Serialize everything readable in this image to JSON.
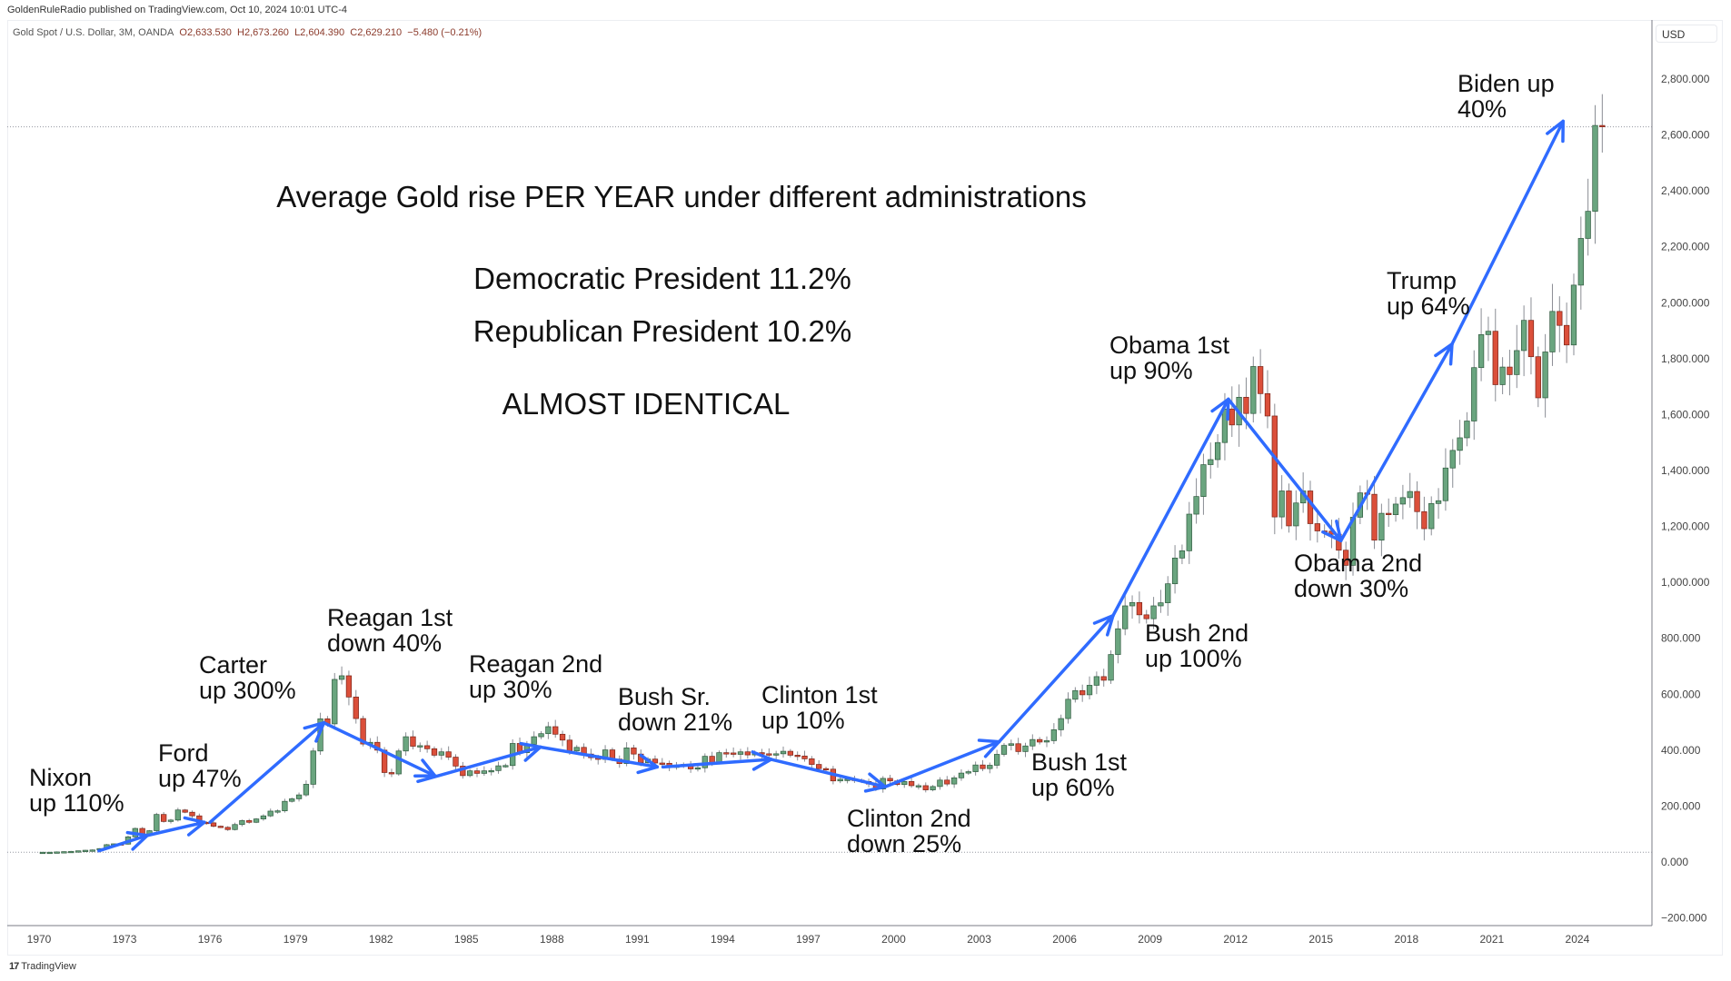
{
  "header": {
    "published": "GoldenRuleRadio published on TradingView.com, Oct 10, 2024 10:01 UTC-4",
    "symbol": "Gold Spot / U.S. Dollar, 3M, OANDA",
    "open": "O2,633.530",
    "high": "H2,673.260",
    "low": "L2,604.390",
    "close": "C2,629.210",
    "change": "−5.480 (−0.21%)"
  },
  "currency": "USD",
  "footer": {
    "brand": "TradingView"
  },
  "headline": {
    "title": "Average Gold rise PER YEAR under different administrations",
    "democratic": "Democratic President 11.2%",
    "republican": "Republican President 10.2%",
    "verdict": "ALMOST IDENTICAL"
  },
  "annotations": [
    {
      "id": "nixon",
      "text": "Nixon\nup 110%"
    },
    {
      "id": "ford",
      "text": "Ford\nup 47%"
    },
    {
      "id": "carter",
      "text": "Carter\nup 300%"
    },
    {
      "id": "reagan1",
      "text": "Reagan 1st\ndown 40%"
    },
    {
      "id": "reagan2",
      "text": "Reagan 2nd\nup 30%"
    },
    {
      "id": "bushsr",
      "text": "Bush Sr.\ndown 21%"
    },
    {
      "id": "clinton1",
      "text": "Clinton 1st\nup 10%"
    },
    {
      "id": "clinton2",
      "text": "Clinton 2nd\ndown 25%"
    },
    {
      "id": "bush1",
      "text": "Bush 1st\nup 60%"
    },
    {
      "id": "bush2",
      "text": "Bush 2nd\nup 100%"
    },
    {
      "id": "obama1",
      "text": "Obama 1st\nup 90%"
    },
    {
      "id": "obama2",
      "text": "Obama 2nd\ndown 30%"
    },
    {
      "id": "trump",
      "text": "Trump\nup 64%"
    },
    {
      "id": "biden",
      "text": "Biden up\n40%"
    }
  ],
  "chart_data": {
    "type": "candlestick",
    "interval": "3M",
    "start": "1970 Q1",
    "ylim": [
      -200,
      2800
    ],
    "y_ticks": [
      "2,800.000",
      "2,600.000",
      "2,400.000",
      "2,200.000",
      "2,000.000",
      "1,800.000",
      "1,600.000",
      "1,400.000",
      "1,200.000",
      "1,000.000",
      "800.000",
      "600.000",
      "400.000",
      "200.000",
      "0.000",
      "−200.000"
    ],
    "y_tick_values": [
      2800,
      2600,
      2400,
      2200,
      2000,
      1800,
      1600,
      1400,
      1200,
      1000,
      800,
      600,
      400,
      200,
      0,
      -200
    ],
    "x_ticks": [
      "1970",
      "1973",
      "1976",
      "1979",
      "1982",
      "1985",
      "1988",
      "1991",
      "1994",
      "1997",
      "2000",
      "2003",
      "2006",
      "2009",
      "2012",
      "2015",
      "2018",
      "2021",
      "2024"
    ],
    "grid": false,
    "colors": {
      "up": "#6aa57f",
      "down": "#db4f3a",
      "up_border": "#2f5a3e",
      "down_border": "#7a2418",
      "arrow": "#2f6bff"
    },
    "quarterly_close": [
      35,
      35,
      36,
      37,
      38,
      40,
      42,
      43,
      48,
      62,
      65,
      64,
      90,
      120,
      100,
      112,
      170,
      145,
      150,
      186,
      178,
      165,
      142,
      140,
      128,
      124,
      116,
      134,
      148,
      142,
      154,
      165,
      182,
      183,
      217,
      226,
      240,
      278,
      397,
      512,
      494,
      653,
      666,
      590,
      513,
      422,
      428,
      400,
      320,
      315,
      397,
      448,
      414,
      416,
      405,
      382,
      394,
      375,
      343,
      309,
      326,
      317,
      326,
      327,
      344,
      345,
      424,
      391,
      421,
      448,
      459,
      484,
      457,
      436,
      397,
      410,
      386,
      373,
      367,
      401,
      368,
      352,
      408,
      386,
      355,
      368,
      354,
      353,
      342,
      343,
      349,
      333,
      337,
      378,
      356,
      391,
      390,
      385,
      394,
      383,
      391,
      387,
      384,
      387,
      396,
      382,
      379,
      369,
      349,
      334,
      332,
      290,
      296,
      296,
      293,
      288,
      279,
      261,
      299,
      290,
      277,
      288,
      273,
      273,
      258,
      270,
      293,
      279,
      301,
      318,
      323,
      347,
      334,
      346,
      385,
      417,
      423,
      395,
      415,
      438,
      429,
      434,
      473,
      513,
      582,
      613,
      598,
      632,
      663,
      650,
      742,
      834,
      916,
      928,
      884,
      870,
      916,
      927,
      995,
      1087,
      1113,
      1244,
      1307,
      1421,
      1439,
      1500,
      1620,
      1563,
      1662,
      1604,
      1772,
      1675,
      1595,
      1234,
      1327,
      1202,
      1284,
      1327,
      1210,
      1184,
      1183,
      1172,
      1115,
      1061,
      1233,
      1320,
      1315,
      1151,
      1247,
      1242,
      1280,
      1303,
      1325,
      1253,
      1192,
      1282,
      1292,
      1409,
      1472,
      1517,
      1577,
      1768,
      1886,
      1898,
      1707,
      1770,
      1743,
      1829,
      1937,
      1807,
      1660,
      1824,
      1969,
      1919,
      1849,
      2063,
      2230,
      2327,
      2634,
      2629
    ],
    "reference_lines": [
      2629.21,
      35
    ],
    "arrows": [
      {
        "label": "Nixon",
        "from": [
          1972.1,
          40
        ],
        "to": [
          1973.8,
          95
        ]
      },
      {
        "label": "Ford",
        "from": [
          1973.8,
          95
        ],
        "to": [
          1975.8,
          142
        ]
      },
      {
        "label": "Carter",
        "from": [
          1976.0,
          142
        ],
        "to": [
          1980.0,
          498
        ]
      },
      {
        "label": "Reagan 1st",
        "from": [
          1980.0,
          498
        ],
        "to": [
          1983.9,
          308
        ]
      },
      {
        "label": "Reagan 2nd",
        "from": [
          1983.3,
          288
        ],
        "to": [
          1987.6,
          411
        ]
      },
      {
        "label": "Bush Sr.",
        "from": [
          1987.6,
          411
        ],
        "to": [
          1991.7,
          340
        ]
      },
      {
        "label": "Clinton 1st",
        "from": [
          1991.9,
          340
        ],
        "to": [
          1995.7,
          367
        ]
      },
      {
        "label": "Clinton 2nd",
        "from": [
          1995.7,
          367
        ],
        "to": [
          1999.7,
          269
        ]
      },
      {
        "label": "Bush 1st",
        "from": [
          1999.7,
          269
        ],
        "to": [
          2003.7,
          430
        ]
      },
      {
        "label": "Bush 2nd",
        "from": [
          2003.7,
          430
        ],
        "to": [
          2007.7,
          881
        ]
      },
      {
        "label": "Obama 1st",
        "from": [
          2007.7,
          881
        ],
        "to": [
          2011.75,
          1655
        ]
      },
      {
        "label": "Obama 2nd",
        "from": [
          2011.75,
          1655
        ],
        "to": [
          2015.7,
          1149
        ]
      },
      {
        "label": "Trump",
        "from": [
          2015.7,
          1149
        ],
        "to": [
          2019.6,
          1852
        ]
      },
      {
        "label": "Biden",
        "from": [
          2019.6,
          1852
        ],
        "to": [
          2023.5,
          2649
        ]
      }
    ]
  }
}
